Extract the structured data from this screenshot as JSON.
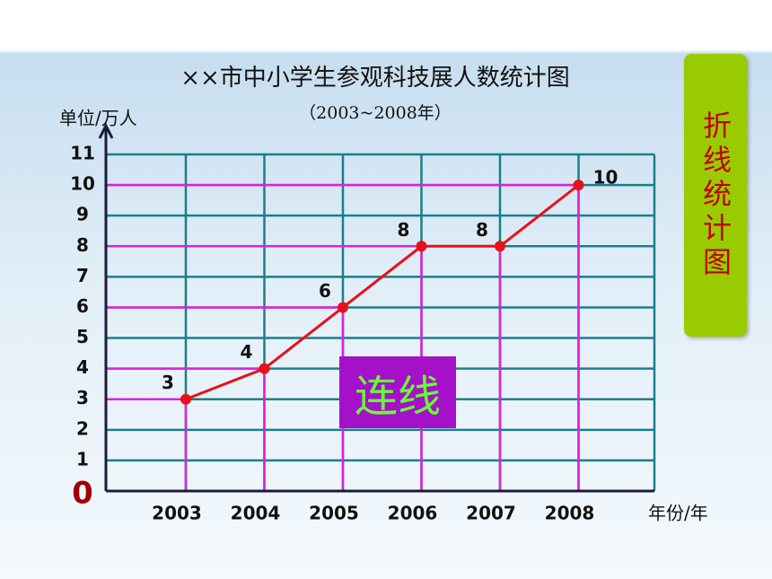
{
  "chart_data": {
    "type": "line",
    "title": "××市中小学生参观科技展人数统计图",
    "subtitle": "（2003~2008年）",
    "y_axis_label": "单位/万人",
    "x_axis_label": "年份/年",
    "categories": [
      "2003",
      "2004",
      "2005",
      "2006",
      "2007",
      "2008"
    ],
    "values": [
      3,
      4,
      6,
      8,
      8,
      10
    ],
    "color": "#e8101a",
    "guide_color": "#e020e0",
    "grid_color": "#1a7f8a",
    "ylim": [
      0,
      11
    ],
    "yticks": [
      0,
      1,
      2,
      3,
      4,
      5,
      6,
      7,
      8,
      9,
      10,
      11
    ],
    "grid": true,
    "banner": "折线统计图",
    "box_label": "连线"
  }
}
